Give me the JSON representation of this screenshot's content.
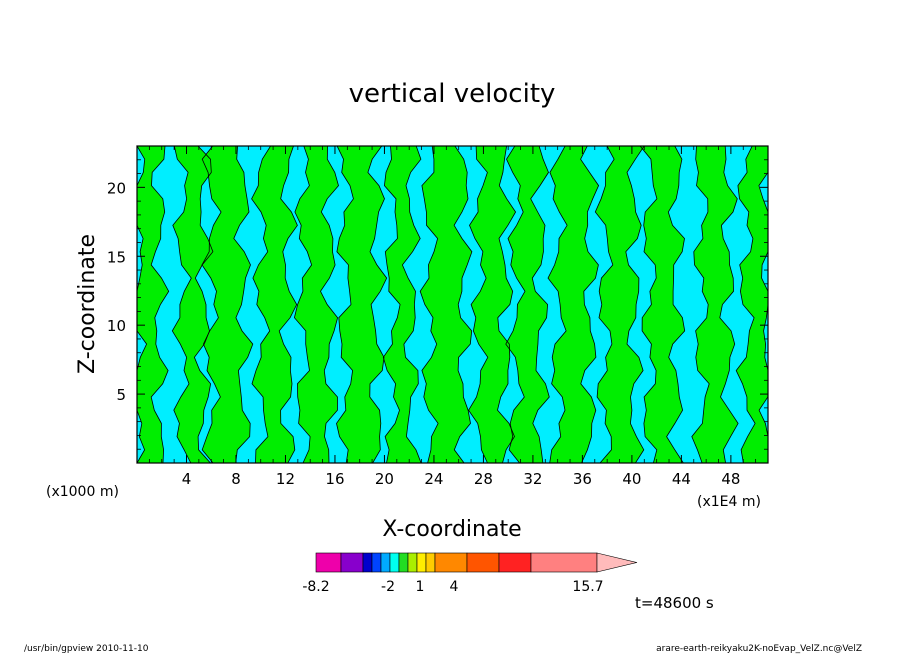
{
  "chart_data": {
    "type": "heatmap",
    "title": "vertical velocity",
    "xlabel": "X-coordinate",
    "ylabel": "Z-coordinate",
    "x_scale_note_left": "(x1000 m)",
    "x_scale_note_right": "(x1E4 m)",
    "xlim": [
      0,
      51
    ],
    "ylim": [
      0,
      23
    ],
    "x_ticks": [
      4,
      8,
      12,
      16,
      20,
      24,
      28,
      32,
      36,
      40,
      44,
      48
    ],
    "y_ticks": [
      5,
      10,
      15,
      20
    ],
    "field_colors": {
      "negative": "#00eeff",
      "positive": "#00ee00",
      "contour": "#000000"
    },
    "green_bands": [
      [
        0.0,
        1.8
      ],
      [
        3.6,
        5.4
      ],
      [
        6.0,
        8.6
      ],
      [
        10.0,
        12.2
      ],
      [
        13.4,
        15.6
      ],
      [
        16.8,
        19.4
      ],
      [
        20.6,
        22.2
      ],
      [
        23.6,
        26.4
      ],
      [
        27.6,
        29.8
      ],
      [
        30.6,
        32.6
      ],
      [
        34.0,
        36.6
      ],
      [
        37.8,
        40.2
      ],
      [
        41.4,
        43.6
      ],
      [
        45.6,
        47.8
      ],
      [
        49.2,
        51.0
      ]
    ],
    "colorbar": {
      "tick_labels": [
        "-8.2",
        "-2",
        "1",
        "4",
        "15.7"
      ],
      "colors": [
        "#ee00aa",
        "#8800cc",
        "#0000cc",
        "#0044ff",
        "#00aaff",
        "#00ffee",
        "#22dd22",
        "#aaee00",
        "#ffee00",
        "#ffcc00",
        "#ff8800",
        "#ff5500",
        "#ff2222",
        "#ff8080",
        "#ffbbbb"
      ],
      "extend": "max"
    },
    "time_label": "t=48600 s"
  },
  "footer": {
    "left": "/usr/bin/gpview   2010-11-10",
    "right": "arare-earth-reikyaku2K-noEvap_VelZ.nc@VelZ"
  }
}
